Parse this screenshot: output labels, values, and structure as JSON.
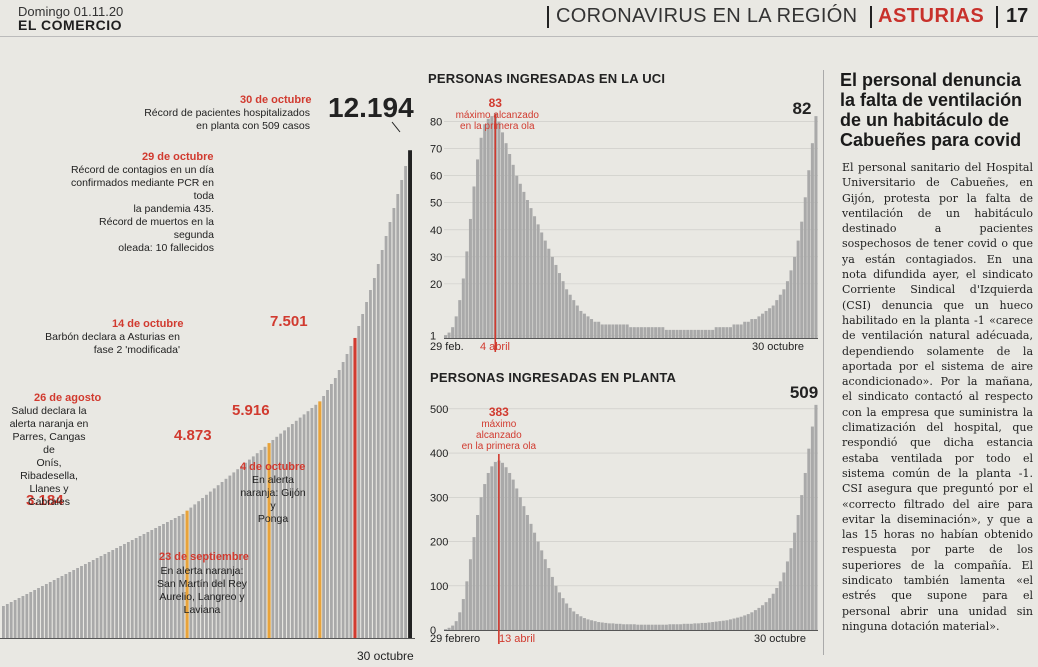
{
  "header": {
    "date": "Domingo 01.11.20",
    "brand": "EL COMERCIO",
    "section": "CORONAVIRUS EN LA REGIÓN",
    "region": "ASTURIAS",
    "page": "17"
  },
  "colors": {
    "accent": "#d13a2f",
    "orange": "#e8a33a",
    "bar": "#a9a9a9",
    "dark": "#222222"
  },
  "left_chart": {
    "final_value": "12.194",
    "x_label": "30 octubre",
    "milestones": [
      {
        "value": "3.184",
        "date": "26 de agosto",
        "text": [
          "Salud declara la",
          "alerta naranja en",
          "Parres, Cangas de",
          "Onís, Ribadesella,",
          "Llanes y Cabrales"
        ]
      },
      {
        "value": "4.873",
        "date": "23 de septiembre",
        "text": [
          "En alerta naranja:",
          "San Martín del Rey",
          "Aurelio, Langreo y",
          "Laviana"
        ]
      },
      {
        "value": "5.916",
        "date": "4 de octubre",
        "text": [
          "En alerta",
          "naranja: Gijón y",
          "Ponga"
        ]
      },
      {
        "value": "7.501",
        "date": "14 de octubre",
        "text": [
          "Barbón declara a Asturias en",
          "fase 2 'modificada'"
        ]
      }
    ],
    "annotations": [
      {
        "date": "29 de octubre",
        "text": [
          "Récord de contagios en un día",
          "confirmados mediante PCR en toda",
          "la pandemia 435.",
          "Récord de muertos en la segunda",
          "oleada: 10 fallecidos"
        ]
      },
      {
        "date": "30 de octubre",
        "text": [
          "Récord de pacientes hospitalizados",
          "en planta con 509 casos"
        ]
      }
    ]
  },
  "chart_data": [
    {
      "type": "bar",
      "title": "",
      "xlabel": "30 octubre",
      "ylabel": "",
      "description_values": [
        3184,
        4873,
        5916,
        7501,
        12194
      ],
      "values": [
        800,
        850,
        900,
        950,
        1000,
        1050,
        1100,
        1150,
        1200,
        1250,
        1300,
        1350,
        1400,
        1450,
        1500,
        1550,
        1600,
        1650,
        1700,
        1750,
        1800,
        1850,
        1900,
        1950,
        2000,
        2050,
        2100,
        2150,
        2200,
        2250,
        2300,
        2350,
        2400,
        2450,
        2500,
        2550,
        2600,
        2650,
        2700,
        2750,
        2800,
        2850,
        2900,
        2950,
        3000,
        3050,
        3100,
        3184,
        3260,
        3340,
        3420,
        3500,
        3580,
        3660,
        3740,
        3820,
        3900,
        3980,
        4060,
        4140,
        4220,
        4300,
        4380,
        4460,
        4540,
        4620,
        4700,
        4780,
        4873,
        4950,
        5030,
        5110,
        5190,
        5270,
        5350,
        5430,
        5510,
        5590,
        5670,
        5750,
        5830,
        5916,
        6050,
        6200,
        6350,
        6500,
        6700,
        6900,
        7100,
        7300,
        7501,
        7800,
        8100,
        8400,
        8700,
        9000,
        9350,
        9700,
        10050,
        10400,
        10750,
        11100,
        11450,
        11800,
        12194
      ],
      "highlights": [
        {
          "index": 47,
          "color": "orange",
          "label": "3.184"
        },
        {
          "index": 68,
          "color": "orange",
          "label": "4.873"
        },
        {
          "index": 81,
          "color": "orange",
          "label": "5.916"
        },
        {
          "index": 90,
          "color": "red",
          "label": "7.501"
        },
        {
          "index": 104,
          "color": "dark",
          "label": "12.194"
        }
      ],
      "ylim": [
        0,
        12500
      ]
    },
    {
      "type": "area",
      "title": "PERSONAS INGRESADAS EN LA UCI",
      "x_ticks": [
        "29 feb.",
        "4 abril",
        "30 octubre"
      ],
      "y_ticks": [
        80,
        70,
        60,
        50,
        40,
        30,
        20,
        1
      ],
      "ylim": [
        0,
        85
      ],
      "peak_marker": {
        "value": "83",
        "text": [
          "máximo alcanzado",
          "en la primera ola"
        ]
      },
      "last_value": "82",
      "values": [
        1,
        2,
        4,
        8,
        14,
        22,
        32,
        44,
        56,
        66,
        74,
        79,
        81,
        82,
        83,
        80,
        76,
        72,
        68,
        64,
        60,
        57,
        54,
        51,
        48,
        45,
        42,
        39,
        36,
        33,
        30,
        27,
        24,
        21,
        18,
        16,
        14,
        12,
        10,
        9,
        8,
        7,
        6,
        6,
        5,
        5,
        5,
        5,
        5,
        5,
        5,
        5,
        4,
        4,
        4,
        4,
        4,
        4,
        4,
        4,
        4,
        4,
        3,
        3,
        3,
        3,
        3,
        3,
        3,
        3,
        3,
        3,
        3,
        3,
        3,
        3,
        4,
        4,
        4,
        4,
        4,
        5,
        5,
        5,
        6,
        6,
        7,
        7,
        8,
        9,
        10,
        11,
        12,
        14,
        16,
        18,
        21,
        25,
        30,
        36,
        43,
        52,
        62,
        72,
        82
      ]
    },
    {
      "type": "area",
      "title": "PERSONAS INGRESADAS EN PLANTA",
      "x_ticks": [
        "29 febrero",
        "13 abril",
        "30 octubre"
      ],
      "y_ticks": [
        500,
        400,
        300,
        200,
        100,
        0
      ],
      "ylim": [
        0,
        520
      ],
      "peak_marker": {
        "value": "383",
        "text": [
          "máximo",
          "alcanzado",
          "en la primera ola"
        ]
      },
      "last_value": "509",
      "values": [
        2,
        5,
        10,
        20,
        40,
        70,
        110,
        160,
        210,
        260,
        300,
        330,
        355,
        370,
        380,
        383,
        378,
        368,
        355,
        340,
        320,
        300,
        280,
        260,
        240,
        220,
        200,
        180,
        160,
        140,
        120,
        100,
        85,
        72,
        60,
        50,
        42,
        36,
        31,
        27,
        24,
        22,
        20,
        18,
        17,
        16,
        15,
        15,
        14,
        14,
        13,
        13,
        13,
        13,
        12,
        12,
        12,
        12,
        12,
        12,
        12,
        12,
        12,
        13,
        13,
        13,
        13,
        14,
        14,
        14,
        15,
        15,
        16,
        16,
        17,
        18,
        19,
        20,
        21,
        22,
        24,
        26,
        28,
        30,
        33,
        36,
        40,
        45,
        50,
        56,
        63,
        72,
        82,
        95,
        110,
        130,
        155,
        185,
        220,
        260,
        305,
        355,
        410,
        460,
        509
      ]
    }
  ],
  "article": {
    "headline": "El personal denuncia la falta de ventilación de un habitáculo de Cabueñes para covid",
    "body": "El personal sanitario del Hospital Universitario de Cabueñes, en Gijón, protesta por la falta de ventilación de un habitáculo destinado a pacientes sospechosos de tener covid o que ya están contagiados. En una nota difundida ayer, el sindicato Corriente Sindical d'Izquierda (CSI) denuncia que un hueco habilitado en la planta -1 «carece de ventilación natural adécuada, dependiendo solamente de la aportada por el sistema de aire acondicionado». Por la mañana, el sindicato contactó al respecto con la empresa que suministra la climatización del hospital, que respondió que dicha estancia estaba ventilada por todo el sistema común de la planta -1. CSI asegura que preguntó por el «correcto filtrado del aire para evitar la diseminación», y que a las 15 horas no habían obtenido respuesta por parte de los superiores de la compañía. El sindicato también lamenta «el estrés que supone para el personal abrir una unidad sin ninguna dotación material»."
  }
}
